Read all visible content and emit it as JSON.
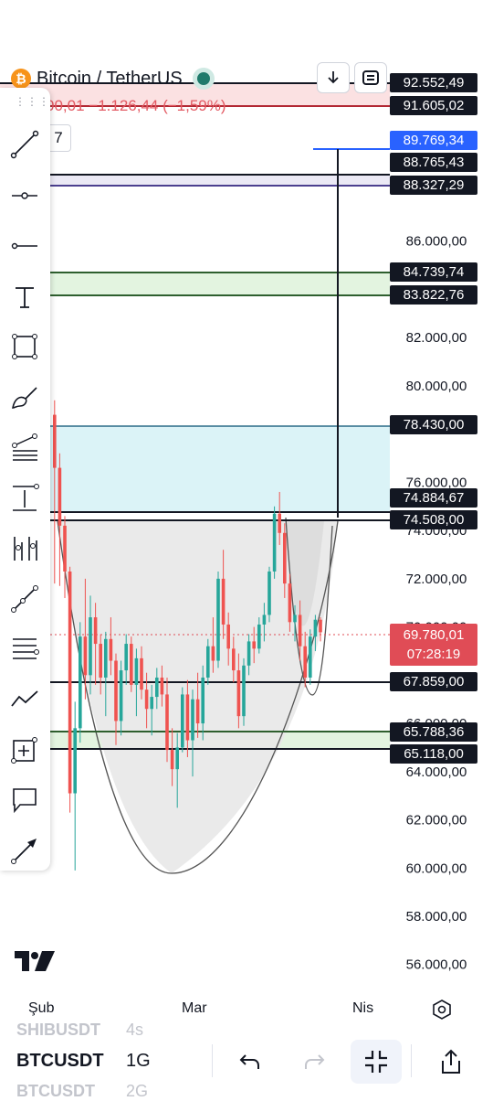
{
  "header": {
    "symbol_title": "Bitcoin / TetherUS",
    "btc_glyph": "₿",
    "change_text": "00,01 −1.126,44 (−1,59%)",
    "interval_chip": "7",
    "buttons": [
      "download-icon",
      "layout-icon"
    ]
  },
  "price_scale": {
    "ticks": [
      "86.000,00",
      "82.000,00",
      "80.000,00",
      "76.000,00",
      "74.000,00",
      "72.000,00",
      "70.000,00",
      "66.000,00",
      "64.000,00",
      "62.000,00",
      "60.000,00",
      "58.000,00",
      "56.000,00"
    ]
  },
  "price_labels": [
    {
      "text": "92.552,49",
      "style": "dark"
    },
    {
      "text": "91.605,02",
      "style": "dark"
    },
    {
      "text": "89.769,34",
      "style": "blue"
    },
    {
      "text": "88.765,43",
      "style": "dark"
    },
    {
      "text": "88.327,29",
      "style": "dark"
    },
    {
      "text": "84.739,74",
      "style": "dark"
    },
    {
      "text": "83.822,76",
      "style": "dark"
    },
    {
      "text": "78.430,00",
      "style": "dark"
    },
    {
      "text": "74.884,67",
      "style": "dark"
    },
    {
      "text": "74.508,00",
      "style": "dark"
    },
    {
      "text": "67.859,00",
      "style": "dark"
    },
    {
      "text": "65.788,36",
      "style": "dark"
    },
    {
      "text": "65.118,00",
      "style": "dark"
    }
  ],
  "last_price": {
    "value": "69.780,01",
    "countdown": "07:28:19"
  },
  "time_axis": {
    "labels": [
      "Şub",
      "Mar",
      "Nis"
    ]
  },
  "toolbar": {
    "tools": [
      "trend-line-icon",
      "horizontal-ray-icon",
      "horizontal-line-icon",
      "text-icon",
      "rectangle-icon",
      "brush-icon",
      "fib-retracement-icon",
      "long-position-icon",
      "pitchfork-icon",
      "path-icon",
      "parallel-channel-icon",
      "pattern-icon",
      "measure-icon",
      "callout-icon",
      "arrow-icon"
    ]
  },
  "bottom_bar": {
    "prev_symbol": "SHIBUSDT",
    "prev_interval": "4s",
    "symbol": "BTCUSDT",
    "interval": "1G",
    "next_symbol": "BTCUSDT",
    "next_interval": "2G",
    "buttons": [
      "undo-icon",
      "redo-icon",
      "fullscreen-collapse-icon",
      "share-icon"
    ]
  },
  "colors": {
    "up": "#26a69a",
    "down": "#ef5350",
    "accent_blue": "#2962ff",
    "zone_green": "#e3f4e0",
    "zone_cyan": "#dbf3f7",
    "zone_red": "#fbe1e2"
  },
  "chart_data": {
    "type": "candlestick",
    "ylim": [
      55000,
      94000
    ],
    "candles": [
      [
        null,
        78800,
        79400,
        71800,
        76600
      ],
      [
        null,
        76600,
        77200,
        71700,
        74200
      ],
      [
        null,
        74200,
        74600,
        71200,
        72300
      ],
      [
        null,
        72300,
        72500,
        62300,
        63100
      ],
      [
        null,
        63100,
        66900,
        59900,
        65800
      ],
      [
        null,
        65800,
        70200,
        65200,
        69600
      ],
      [
        null,
        69600,
        72000,
        67000,
        68000
      ],
      [
        null,
        68000,
        71300,
        67200,
        70400
      ],
      [
        null,
        70400,
        71000,
        67600,
        69300
      ],
      [
        null,
        69300,
        69700,
        67200,
        67900
      ],
      [
        null,
        67900,
        69800,
        66300,
        69500
      ],
      [
        null,
        69500,
        70400,
        68000,
        68600
      ],
      [
        null,
        68600,
        68900,
        65100,
        66100
      ],
      [
        null,
        66100,
        68600,
        65500,
        68200
      ],
      [
        null,
        68200,
        69700,
        67600,
        69300
      ],
      [
        null,
        69300,
        69600,
        67300,
        67600
      ],
      [
        null,
        67600,
        69100,
        66300,
        68700
      ],
      [
        null,
        68700,
        69200,
        67000,
        67400
      ],
      [
        null,
        67400,
        68100,
        65800,
        66600
      ],
      [
        null,
        66600,
        67600,
        65500,
        67100
      ],
      [
        null,
        67100,
        68300,
        66600,
        67900
      ],
      [
        null,
        67900,
        68400,
        66700,
        67200
      ],
      [
        null,
        67200,
        67900,
        64400,
        64900
      ],
      [
        null,
        64900,
        65800,
        63400,
        64100
      ],
      [
        null,
        64100,
        65600,
        62500,
        65000
      ],
      [
        null,
        65000,
        67500,
        64800,
        67200
      ],
      [
        null,
        67200,
        67800,
        64600,
        65300
      ],
      [
        null,
        65300,
        67400,
        63800,
        67000
      ],
      [
        null,
        67000,
        68100,
        65400,
        66000
      ],
      [
        null,
        66000,
        68400,
        65300,
        67900
      ],
      [
        null,
        67900,
        69500,
        67600,
        69200
      ],
      [
        null,
        69200,
        70400,
        68100,
        68600
      ],
      [
        null,
        68600,
        72300,
        68300,
        72000
      ],
      [
        null,
        72000,
        73200,
        69500,
        70100
      ],
      [
        null,
        70100,
        70600,
        68400,
        69100
      ],
      [
        null,
        69100,
        69600,
        67700,
        68200
      ],
      [
        null,
        68200,
        68900,
        65800,
        66300
      ],
      [
        null,
        66300,
        68700,
        65900,
        68400
      ],
      [
        null,
        68400,
        69700,
        68000,
        69400
      ],
      [
        null,
        69400,
        70000,
        68500,
        69100
      ],
      [
        null,
        69100,
        70400,
        68900,
        70100
      ],
      [
        null,
        70100,
        71000,
        69400,
        70500
      ],
      [
        null,
        70500,
        72500,
        70200,
        72300
      ],
      [
        null,
        72300,
        75000,
        72000,
        74700
      ],
      [
        null,
        74700,
        75600,
        73400,
        73900
      ],
      [
        null,
        73900,
        74300,
        71200,
        71800
      ],
      [
        null,
        71800,
        72200,
        69800,
        70200
      ],
      [
        null,
        70200,
        70900,
        69400,
        70500
      ],
      [
        null,
        70500,
        71100,
        68600,
        69200
      ],
      [
        null,
        69200,
        69800,
        67500,
        67900
      ],
      [
        null,
        67900,
        69900,
        67600,
        69600
      ],
      [
        null,
        69600,
        70500,
        69000,
        70300
      ],
      [
        null,
        70300,
        70400,
        69400,
        69780
      ]
    ]
  }
}
